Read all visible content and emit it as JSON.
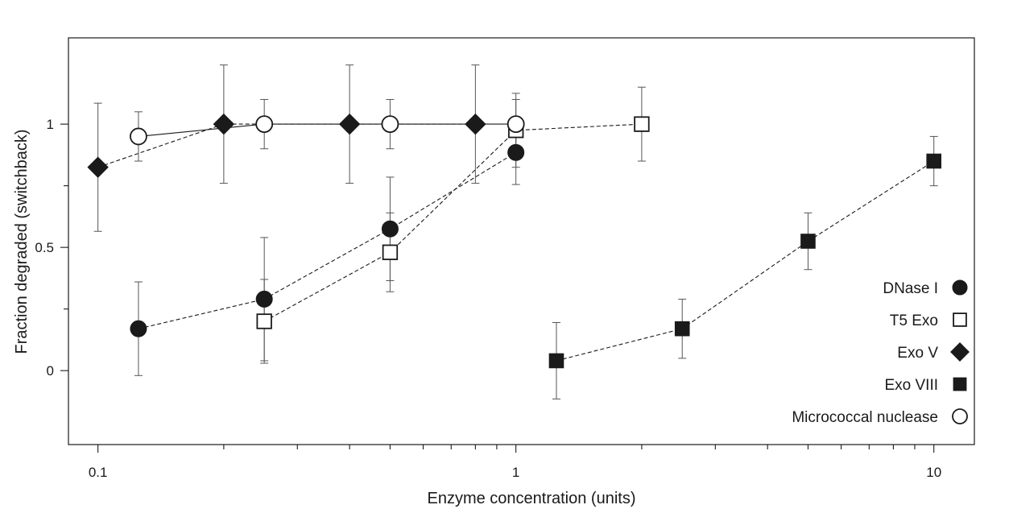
{
  "chart_data": {
    "type": "scatter",
    "title": "",
    "xlabel": "Enzyme concentration (units)",
    "ylabel": "Fraction degraded (switchback)",
    "xscale": "log",
    "xlim": [
      0.085,
      12.5
    ],
    "ylim": [
      -0.3,
      1.35
    ],
    "xticks": [
      {
        "value": 0.1,
        "label": "0.1"
      },
      {
        "value": 1,
        "label": "1"
      },
      {
        "value": 10,
        "label": "10"
      }
    ],
    "yticks": [
      {
        "value": 0,
        "label": "0"
      },
      {
        "value": 0.5,
        "label": "0.5"
      },
      {
        "value": 1,
        "label": "1"
      }
    ],
    "grid": false,
    "legend_position": "bottom-right",
    "series": [
      {
        "name": "DNase I",
        "marker": "circle-filled",
        "line": "dashed",
        "points": [
          {
            "x": 0.125,
            "y": 0.17,
            "err": 0.19
          },
          {
            "x": 0.25,
            "y": 0.29,
            "err": 0.25
          },
          {
            "x": 0.5,
            "y": 0.575,
            "err": 0.21
          },
          {
            "x": 1.0,
            "y": 0.885,
            "err": 0.13
          }
        ]
      },
      {
        "name": "T5 Exo",
        "marker": "square-open",
        "line": "dashed",
        "points": [
          {
            "x": 0.25,
            "y": 0.2,
            "err": 0.17
          },
          {
            "x": 0.5,
            "y": 0.48,
            "err": 0.16
          },
          {
            "x": 1.0,
            "y": 0.975,
            "err": 0.15
          },
          {
            "x": 2.0,
            "y": 1.0,
            "err": 0.15
          }
        ]
      },
      {
        "name": "Exo V",
        "marker": "diamond-filled",
        "line": "dashed",
        "points": [
          {
            "x": 0.1,
            "y": 0.825,
            "err": 0.26
          },
          {
            "x": 0.2,
            "y": 1.0,
            "err": 0.24
          },
          {
            "x": 0.4,
            "y": 1.0,
            "err": 0.24
          },
          {
            "x": 0.8,
            "y": 1.0,
            "err": 0.24
          }
        ]
      },
      {
        "name": "Exo VIII",
        "marker": "square-filled",
        "line": "dashed",
        "points": [
          {
            "x": 1.25,
            "y": 0.04,
            "err": 0.155
          },
          {
            "x": 2.5,
            "y": 0.17,
            "err": 0.12
          },
          {
            "x": 5.0,
            "y": 0.525,
            "err": 0.115
          },
          {
            "x": 10.0,
            "y": 0.85,
            "err": 0.1
          }
        ]
      },
      {
        "name": "Micrococcal nuclease",
        "marker": "circle-open",
        "line": "solid",
        "points": [
          {
            "x": 0.125,
            "y": 0.95,
            "err": 0.1
          },
          {
            "x": 0.25,
            "y": 1.0,
            "err": 0.1
          },
          {
            "x": 0.5,
            "y": 1.0,
            "err": 0.1
          },
          {
            "x": 1.0,
            "y": 1.0,
            "err": 0.1
          }
        ]
      }
    ]
  }
}
